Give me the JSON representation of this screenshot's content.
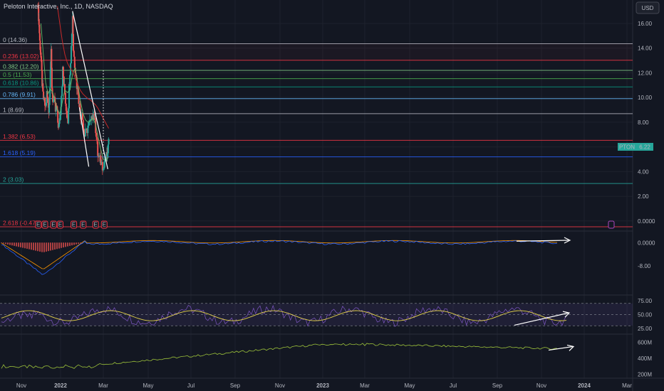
{
  "header": {
    "title": "Peloton Interactive, Inc., 1D, NASDAQ",
    "currency": "USD"
  },
  "price_tag": {
    "symbol": "PTON",
    "value": "6.22"
  },
  "earnings_marker": "E",
  "chart_data": {
    "type": "line",
    "symbol": "PTON",
    "interval": "1D",
    "exchange": "NASDAQ",
    "x_ticks": [
      "Nov",
      "2022",
      "Mar",
      "May",
      "Jul",
      "Sep",
      "Nov",
      "2023",
      "Mar",
      "May",
      "Jul",
      "Sep",
      "Nov",
      "2024",
      "Mar"
    ],
    "price_axis": {
      "ticks": [
        "16.00",
        "14.00",
        "12.00",
        "10.00",
        "8.00",
        "6.00",
        "4.00",
        "2.00",
        "0.0000"
      ],
      "ylim": [
        -0.3,
        17.9
      ]
    },
    "fib_levels": [
      {
        "label": "0 (14.36)",
        "value": 14.36,
        "color": "#b2b5be"
      },
      {
        "label": "0.236 (13.02)",
        "value": 13.02,
        "color": "#f23645"
      },
      {
        "label": "0.382 (12.20)",
        "value": 12.2,
        "color": "#81c784"
      },
      {
        "label": "0.5 (11.53)",
        "value": 11.53,
        "color": "#4caf50"
      },
      {
        "label": "0.618 (10.86)",
        "value": 10.86,
        "color": "#089981"
      },
      {
        "label": "0.786 (9.91)",
        "value": 9.91,
        "color": "#64b5f6"
      },
      {
        "label": "1 (8.69)",
        "value": 8.69,
        "color": "#b2b5be"
      },
      {
        "label": "1.382 (6.53)",
        "value": 6.53,
        "color": "#f23645"
      },
      {
        "label": "1.618 (5.19)",
        "value": 5.19,
        "color": "#2962ff"
      },
      {
        "label": "2 (3.03)",
        "value": 3.03,
        "color": "#26a69a"
      },
      {
        "label": "2.618 (-0.47)",
        "value": -0.47,
        "color": "#f23645"
      }
    ],
    "price_series": [
      [
        0.43,
        17.6
      ],
      [
        0.44,
        16.6
      ],
      [
        0.45,
        16.0
      ],
      [
        0.47,
        14.5
      ],
      [
        0.49,
        13.8
      ],
      [
        0.51,
        12.6
      ],
      [
        0.53,
        11.2
      ],
      [
        0.55,
        10.2
      ],
      [
        0.58,
        9.6
      ],
      [
        0.62,
        9.2
      ],
      [
        0.65,
        10.3
      ],
      [
        0.68,
        9.4
      ],
      [
        0.7,
        9.1
      ],
      [
        0.72,
        10.0
      ],
      [
        0.74,
        12.5
      ],
      [
        0.76,
        13.5
      ],
      [
        0.78,
        10.9
      ],
      [
        0.8,
        9.9
      ],
      [
        0.84,
        9.6
      ],
      [
        0.87,
        8.9
      ],
      [
        0.9,
        9.2
      ],
      [
        0.93,
        8.0
      ],
      [
        0.96,
        7.7
      ],
      [
        0.99,
        8.4
      ],
      [
        1.0,
        8.9
      ],
      [
        1.02,
        10.3
      ],
      [
        1.05,
        12.2
      ],
      [
        1.08,
        11.1
      ],
      [
        1.1,
        10.4
      ],
      [
        1.13,
        9.1
      ],
      [
        1.17,
        8.2
      ],
      [
        1.2,
        10.8
      ],
      [
        1.22,
        12.2
      ],
      [
        1.25,
        14.1
      ],
      [
        1.28,
        16.7
      ],
      [
        1.3,
        13.9
      ],
      [
        1.33,
        12.7
      ],
      [
        1.36,
        12.1
      ],
      [
        1.38,
        11.0
      ],
      [
        1.41,
        10.5
      ],
      [
        1.44,
        9.3
      ],
      [
        1.47,
        8.6
      ],
      [
        1.5,
        9.1
      ],
      [
        1.53,
        7.5
      ],
      [
        1.56,
        6.9
      ],
      [
        1.6,
        7.2
      ],
      [
        1.64,
        7.7
      ],
      [
        1.68,
        7.9
      ],
      [
        1.72,
        8.1
      ],
      [
        1.76,
        9.0
      ],
      [
        1.79,
        8.4
      ],
      [
        1.82,
        7.5
      ],
      [
        1.85,
        6.7
      ],
      [
        1.87,
        5.4
      ],
      [
        1.9,
        5.0
      ],
      [
        1.94,
        4.8
      ],
      [
        1.98,
        4.5
      ],
      [
        2.02,
        4.8
      ],
      [
        2.06,
        5.1
      ],
      [
        2.08,
        5.3
      ],
      [
        2.1,
        5.7
      ],
      [
        2.12,
        6.22
      ]
    ],
    "ma_fast": [
      [
        0.5,
        16.0
      ],
      [
        0.56,
        13.5
      ],
      [
        0.62,
        11.2
      ],
      [
        0.68,
        10.3
      ],
      [
        0.74,
        10.7
      ],
      [
        0.8,
        10.4
      ],
      [
        0.86,
        9.7
      ],
      [
        0.92,
        9.0
      ],
      [
        0.98,
        8.7
      ],
      [
        1.04,
        9.6
      ],
      [
        1.1,
        10.6
      ],
      [
        1.16,
        10.4
      ],
      [
        1.22,
        10.6
      ],
      [
        1.28,
        11.9
      ],
      [
        1.34,
        12.4
      ],
      [
        1.4,
        11.2
      ],
      [
        1.46,
        9.8
      ],
      [
        1.52,
        8.8
      ],
      [
        1.58,
        8.2
      ],
      [
        1.64,
        8.0
      ],
      [
        1.7,
        8.1
      ],
      [
        1.76,
        8.3
      ],
      [
        1.82,
        7.8
      ],
      [
        1.88,
        6.8
      ],
      [
        1.94,
        5.8
      ],
      [
        2.0,
        5.0
      ],
      [
        2.06,
        4.9
      ],
      [
        2.12,
        5.2
      ]
    ],
    "ma_slow": [
      [
        0.92,
        17.4
      ],
      [
        0.98,
        16.0
      ],
      [
        1.04,
        14.6
      ],
      [
        1.1,
        13.5
      ],
      [
        1.16,
        12.8
      ],
      [
        1.22,
        12.4
      ],
      [
        1.28,
        12.1
      ],
      [
        1.34,
        11.6
      ],
      [
        1.4,
        11.1
      ],
      [
        1.46,
        10.6
      ],
      [
        1.52,
        10.3
      ],
      [
        1.58,
        10.1
      ],
      [
        1.64,
        9.9
      ],
      [
        1.7,
        9.8
      ],
      [
        1.76,
        9.6
      ],
      [
        1.82,
        9.4
      ],
      [
        1.88,
        9.1
      ],
      [
        1.94,
        8.7
      ],
      [
        2.0,
        8.3
      ],
      [
        2.06,
        7.9
      ],
      [
        2.12,
        7.5
      ]
    ],
    "trend_lines": [
      {
        "from": [
          1.28,
          17.0
        ],
        "to": [
          2.1,
          4.2
        ],
        "color": "#ffffff"
      },
      {
        "from": [
          1.44,
          9.2
        ],
        "to": [
          1.66,
          4.4
        ],
        "color": "#ffffff"
      }
    ],
    "earnings_x": [
      0.43,
      0.6,
      0.82,
      0.99,
      1.31,
      1.53,
      1.82,
      2.02
    ],
    "macd": {
      "ticks": [
        "0.0000",
        "-8.00"
      ],
      "ylim": [
        -12,
        4
      ]
    },
    "rsi": {
      "ticks": [
        "75.00",
        "50.00",
        "25.00"
      ],
      "ylim": [
        15,
        85
      ],
      "upper": 70,
      "lower": 30
    },
    "volume_line": {
      "ticks": [
        "600M",
        "400M",
        "200M"
      ],
      "ylim": [
        150,
        700
      ]
    }
  }
}
